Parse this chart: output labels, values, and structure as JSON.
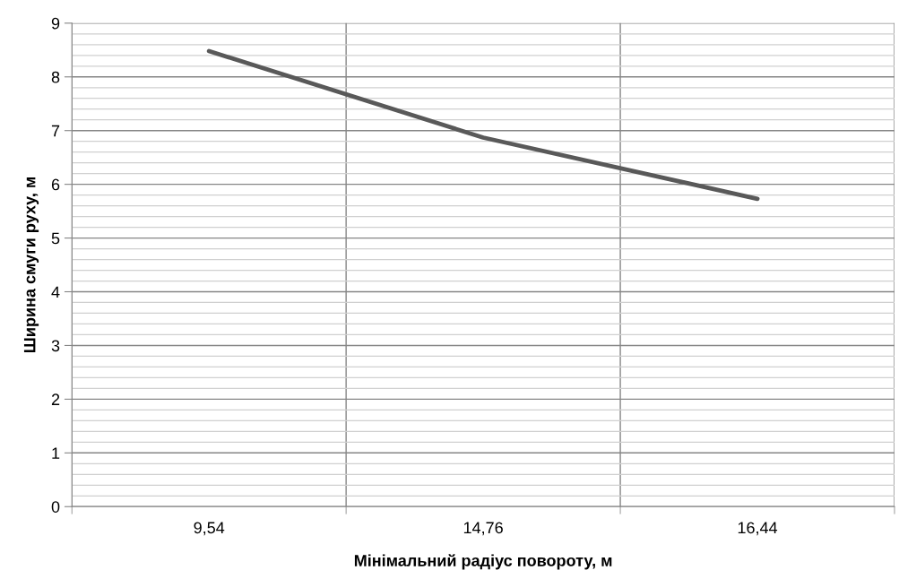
{
  "chart_data": {
    "type": "line",
    "xlabel": "Мінімальний радіус повороту, м",
    "ylabel": "Ширина смуги руху, м",
    "categories": [
      "9,54",
      "14,76",
      "16,44"
    ],
    "series": [
      {
        "color": "#595959",
        "values": [
          8.48,
          6.87,
          5.73
        ]
      }
    ],
    "ylim": [
      0,
      9
    ],
    "yticks": [
      0,
      1,
      2,
      3,
      4,
      5,
      6,
      7,
      8,
      9
    ],
    "grid": true,
    "marker": "none",
    "line_style": "solid",
    "legend": false
  }
}
